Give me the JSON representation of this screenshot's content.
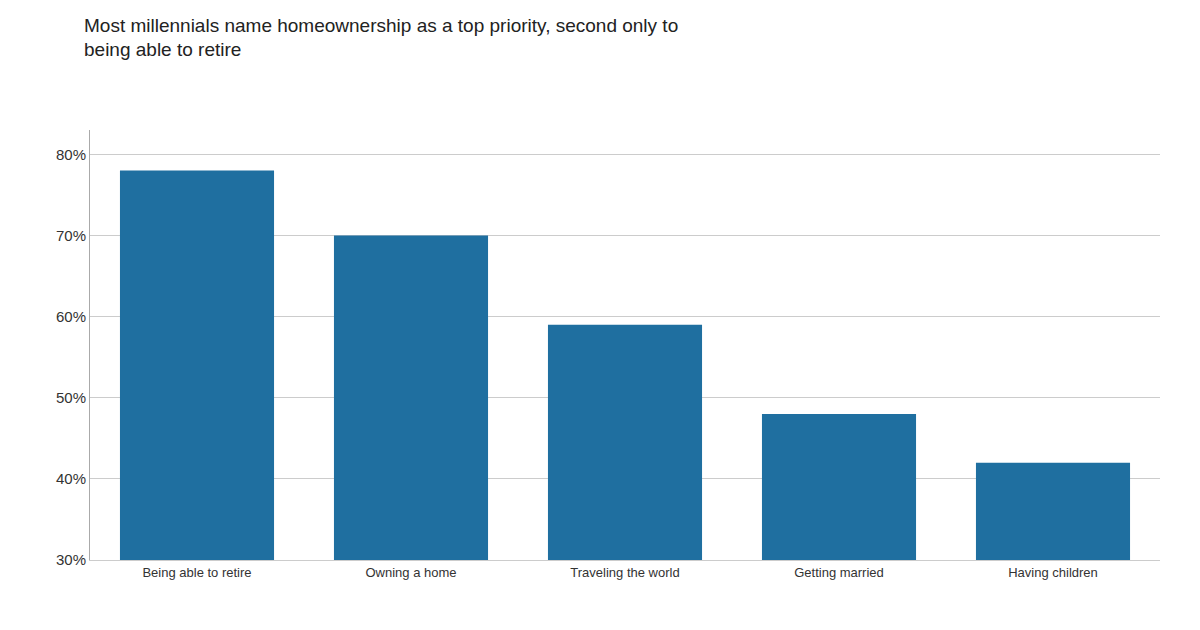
{
  "chart_data": {
    "type": "bar",
    "title": "Most millennials name homeownership as a top priority, second only to\nbeing able to retire",
    "categories": [
      "Being able to retire",
      "Owning a home",
      "Traveling the world",
      "Getting married",
      "Having children"
    ],
    "values": [
      78,
      70,
      59,
      48,
      42
    ],
    "color": "#1F6FA0",
    "ylim": [
      30,
      83
    ],
    "yticks": [
      {
        "value": 30,
        "label": "30%"
      },
      {
        "value": 40,
        "label": "40%"
      },
      {
        "value": 50,
        "label": "50%"
      },
      {
        "value": 60,
        "label": "60%"
      },
      {
        "value": 70,
        "label": "70%"
      },
      {
        "value": 80,
        "label": "80%"
      }
    ],
    "grid": true
  }
}
